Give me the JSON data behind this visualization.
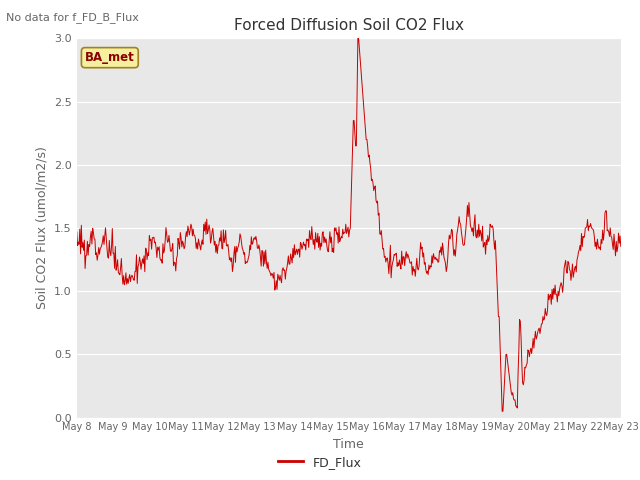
{
  "title": "Forced Diffusion Soil CO2 Flux",
  "xlabel": "Time",
  "ylabel": "Soil CO2 Flux (umol/m2/s)",
  "top_left_text": "No data for f_FD_B_Flux",
  "legend_label": "FD_Flux",
  "box_label": "BA_met",
  "line_color": "#cc0000",
  "ylim": [
    0.0,
    3.0
  ],
  "background_color": "#e8e8e8",
  "grid_color": "#ffffff",
  "fig_width": 6.4,
  "fig_height": 4.8,
  "dpi": 100
}
